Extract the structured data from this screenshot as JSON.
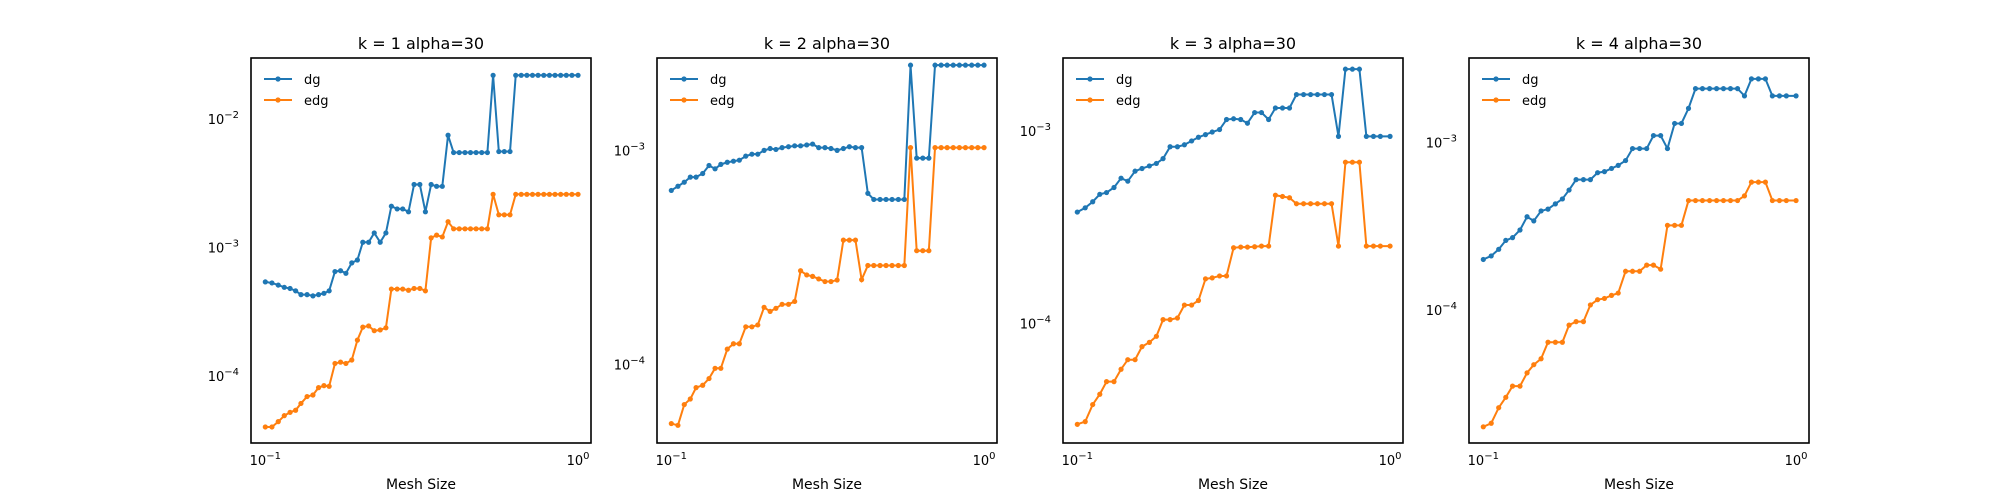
{
  "colors": {
    "dg": "#1f77b4",
    "edg": "#ff7f0e"
  },
  "chart_data": [
    {
      "type": "line",
      "title": "k = 1 alpha=30",
      "xlabel": "Mesh Size",
      "ylabel": "",
      "xscale": "log",
      "yscale": "log",
      "xlim": [
        0.09,
        1.1
      ],
      "ylim": [
        3e-05,
        0.03
      ],
      "xticks": [
        {
          "value": 0.1,
          "base": "10",
          "exp": "−1"
        },
        {
          "value": 1,
          "base": "10",
          "exp": "0"
        }
      ],
      "yticks": [
        {
          "value": 0.0001,
          "base": "10",
          "exp": "−4"
        },
        {
          "value": 0.001,
          "base": "10",
          "exp": "−3"
        },
        {
          "value": 0.01,
          "base": "10",
          "exp": "−2"
        }
      ],
      "legend": "top-left",
      "grid": false,
      "x": [
        0.1,
        0.105,
        0.11,
        0.115,
        0.12,
        0.125,
        0.13,
        0.136,
        0.142,
        0.148,
        0.154,
        0.16,
        0.167,
        0.174,
        0.181,
        0.189,
        0.197,
        0.205,
        0.214,
        0.223,
        0.233,
        0.243,
        0.253,
        0.264,
        0.275,
        0.287,
        0.299,
        0.312,
        0.325,
        0.339,
        0.353,
        0.368,
        0.384,
        0.4,
        0.417,
        0.435,
        0.453,
        0.472,
        0.492,
        0.513,
        0.535,
        0.558,
        0.581,
        0.606,
        0.632,
        0.658,
        0.686,
        0.715,
        0.745,
        0.777,
        0.81,
        0.844,
        0.88,
        0.917,
        0.956,
        1.0
      ],
      "series": [
        {
          "name": "dg",
          "values": [
            0.00054,
            0.00053,
            0.00051,
            0.00049,
            0.00048,
            0.00046,
            0.00043,
            0.00043,
            0.00042,
            0.00043,
            0.00044,
            0.00046,
            0.00065,
            0.00066,
            0.00063,
            0.00076,
            0.0008,
            0.0011,
            0.0011,
            0.0013,
            0.0011,
            0.0013,
            0.0021,
            0.002,
            0.002,
            0.0019,
            0.0031,
            0.0031,
            0.0019,
            0.0031,
            0.003,
            0.003,
            0.0075,
            0.0055,
            0.0055,
            0.0055,
            0.0055,
            0.0055,
            0.0055,
            0.0055,
            0.022,
            0.0056,
            0.0056,
            0.0056,
            0.022,
            0.022,
            0.022,
            0.022,
            0.022,
            0.022,
            0.022,
            0.022,
            0.022,
            0.022,
            0.022,
            0.022
          ]
        },
        {
          "name": "edg",
          "values": [
            4e-05,
            4e-05,
            4.4e-05,
            4.9e-05,
            5.2e-05,
            5.4e-05,
            6.1e-05,
            6.9e-05,
            7.1e-05,
            8.1e-05,
            8.4e-05,
            8.3e-05,
            0.000125,
            0.000128,
            0.000125,
            0.000133,
            0.00019,
            0.00024,
            0.000245,
            0.000225,
            0.000228,
            0.000237,
            0.000475,
            0.000475,
            0.000475,
            0.000465,
            0.00048,
            0.00048,
            0.00046,
            0.00119,
            0.00125,
            0.00121,
            0.00159,
            0.0014,
            0.0014,
            0.0014,
            0.0014,
            0.0014,
            0.0014,
            0.0014,
            0.0026,
            0.0018,
            0.0018,
            0.0018,
            0.0026,
            0.0026,
            0.0026,
            0.0026,
            0.0026,
            0.0026,
            0.0026,
            0.0026,
            0.0026,
            0.0026,
            0.0026,
            0.0026
          ]
        }
      ]
    },
    {
      "type": "line",
      "title": "k = 2 alpha=30",
      "xlabel": "Mesh Size",
      "ylabel": "",
      "xscale": "log",
      "yscale": "log",
      "xlim": [
        0.09,
        1.1
      ],
      "ylim": [
        4.3e-05,
        0.0027
      ],
      "xticks": [
        {
          "value": 0.1,
          "base": "10",
          "exp": "−1"
        },
        {
          "value": 1,
          "base": "10",
          "exp": "0"
        }
      ],
      "yticks": [
        {
          "value": 0.0001,
          "base": "10",
          "exp": "−4"
        },
        {
          "value": 0.001,
          "base": "10",
          "exp": "−3"
        }
      ],
      "legend": "top-left",
      "grid": false,
      "x": [
        0.1,
        0.105,
        0.11,
        0.115,
        0.12,
        0.126,
        0.132,
        0.138,
        0.144,
        0.151,
        0.158,
        0.165,
        0.173,
        0.181,
        0.189,
        0.198,
        0.207,
        0.216,
        0.226,
        0.237,
        0.248,
        0.259,
        0.271,
        0.283,
        0.296,
        0.31,
        0.324,
        0.339,
        0.355,
        0.371,
        0.388,
        0.406,
        0.425,
        0.444,
        0.465,
        0.486,
        0.508,
        0.532,
        0.556,
        0.582,
        0.609,
        0.637,
        0.666,
        0.697,
        0.729,
        0.762,
        0.797,
        0.834,
        0.872,
        0.913,
        0.955,
        1.0
      ],
      "series": [
        {
          "name": "dg",
          "values": [
            0.00065,
            0.00068,
            0.00071,
            0.00075,
            0.00075,
            0.00078,
            0.00085,
            0.00082,
            0.00086,
            0.00088,
            0.00089,
            0.0009,
            0.00094,
            0.00096,
            0.00096,
            0.001,
            0.00102,
            0.00101,
            0.00103,
            0.00104,
            0.00105,
            0.00105,
            0.00106,
            0.00107,
            0.00103,
            0.00103,
            0.00102,
            0.001,
            0.00102,
            0.00104,
            0.00103,
            0.00103,
            0.00063,
            0.00059,
            0.00059,
            0.00059,
            0.00059,
            0.00059,
            0.00059,
            0.0025,
            0.00092,
            0.00092,
            0.00092,
            0.0025,
            0.0025,
            0.0025,
            0.0025,
            0.0025,
            0.0025,
            0.0025,
            0.0025,
            0.0025
          ]
        },
        {
          "name": "edg",
          "values": [
            5.3e-05,
            5.2e-05,
            6.5e-05,
            6.9e-05,
            7.8e-05,
            8e-05,
            8.6e-05,
            9.6e-05,
            9.6e-05,
            0.000118,
            0.000125,
            0.000125,
            0.00015,
            0.00015,
            0.000153,
            0.000185,
            0.000177,
            0.000183,
            0.000191,
            0.000191,
            0.000197,
            0.000274,
            0.000262,
            0.000258,
            0.000251,
            0.000244,
            0.000244,
            0.000248,
            0.000381,
            0.000381,
            0.000381,
            0.000249,
            0.00029,
            0.00029,
            0.00029,
            0.00029,
            0.00029,
            0.00029,
            0.00029,
            0.00103,
            0.00034,
            0.00034,
            0.00034,
            0.00103,
            0.00103,
            0.00103,
            0.00103,
            0.00103,
            0.00103,
            0.00103,
            0.00103,
            0.00103
          ]
        }
      ]
    },
    {
      "type": "line",
      "title": "k = 3 alpha=30",
      "xlabel": "Mesh Size",
      "ylabel": "",
      "xscale": "log",
      "yscale": "log",
      "xlim": [
        0.09,
        1.1
      ],
      "ylim": [
        2.4e-05,
        0.0024
      ],
      "xticks": [
        {
          "value": 0.1,
          "base": "10",
          "exp": "−1"
        },
        {
          "value": 1,
          "base": "10",
          "exp": "0"
        }
      ],
      "yticks": [
        {
          "value": 0.0001,
          "base": "10",
          "exp": "−4"
        },
        {
          "value": 0.001,
          "base": "10",
          "exp": "−3"
        }
      ],
      "legend": "top-left",
      "grid": false,
      "x": [
        0.1,
        0.106,
        0.112,
        0.118,
        0.124,
        0.131,
        0.138,
        0.145,
        0.153,
        0.161,
        0.17,
        0.179,
        0.188,
        0.198,
        0.209,
        0.22,
        0.232,
        0.244,
        0.257,
        0.27,
        0.285,
        0.3,
        0.316,
        0.333,
        0.35,
        0.369,
        0.388,
        0.409,
        0.43,
        0.453,
        0.477,
        0.502,
        0.529,
        0.557,
        0.586,
        0.617,
        0.65,
        0.684,
        0.72,
        0.758,
        0.798,
        0.84,
        0.885,
        0.931,
        1.0
      ],
      "series": [
        {
          "name": "dg",
          "values": [
            0.00038,
            0.0004,
            0.00043,
            0.00047,
            0.00048,
            0.00051,
            0.00057,
            0.00055,
            0.00062,
            0.00064,
            0.00066,
            0.00068,
            0.00072,
            0.00083,
            0.00083,
            0.00085,
            0.00089,
            0.00093,
            0.00096,
            0.00099,
            0.00102,
            0.00115,
            0.00116,
            0.00115,
            0.0011,
            0.00125,
            0.00125,
            0.00115,
            0.00132,
            0.00132,
            0.00132,
            0.00155,
            0.00155,
            0.00155,
            0.00155,
            0.00155,
            0.00155,
            0.00094,
            0.0021,
            0.0021,
            0.0021,
            0.00094,
            0.00094,
            0.00094,
            0.00094
          ]
        },
        {
          "name": "edg",
          "values": [
            3e-05,
            3.1e-05,
            3.8e-05,
            4.3e-05,
            5e-05,
            5e-05,
            5.8e-05,
            6.5e-05,
            6.5e-05,
            7.6e-05,
            8e-05,
            8.6e-05,
            0.000105,
            0.000105,
            0.000107,
            0.000125,
            0.000125,
            0.000132,
            0.000171,
            0.000173,
            0.000177,
            0.000177,
            0.000248,
            0.00025,
            0.00025,
            0.000251,
            0.000253,
            0.000253,
            0.000465,
            0.000458,
            0.000451,
            0.00042,
            0.00042,
            0.00042,
            0.00042,
            0.00042,
            0.00042,
            0.000253,
            0.00069,
            0.00069,
            0.00069,
            0.000253,
            0.000253,
            0.000253,
            0.000253
          ]
        }
      ]
    },
    {
      "type": "line",
      "title": "k = 4 alpha=30",
      "xlabel": "Mesh Size",
      "ylabel": "",
      "xscale": "log",
      "yscale": "log",
      "xlim": [
        0.09,
        1.1
      ],
      "ylim": [
        1.6e-05,
        0.0032
      ],
      "xticks": [
        {
          "value": 0.1,
          "base": "10",
          "exp": "−1"
        },
        {
          "value": 1,
          "base": "10",
          "exp": "0"
        }
      ],
      "yticks": [
        {
          "value": 0.0001,
          "base": "10",
          "exp": "−4"
        },
        {
          "value": 0.001,
          "base": "10",
          "exp": "−3"
        }
      ],
      "legend": "top-left",
      "grid": false,
      "x": [
        0.1,
        0.106,
        0.112,
        0.118,
        0.124,
        0.131,
        0.138,
        0.145,
        0.153,
        0.161,
        0.17,
        0.179,
        0.188,
        0.198,
        0.209,
        0.22,
        0.232,
        0.244,
        0.257,
        0.27,
        0.285,
        0.3,
        0.316,
        0.333,
        0.35,
        0.369,
        0.388,
        0.409,
        0.43,
        0.453,
        0.477,
        0.502,
        0.529,
        0.557,
        0.586,
        0.617,
        0.65,
        0.684,
        0.72,
        0.758,
        0.798,
        0.84,
        0.885,
        0.931,
        1.0
      ],
      "series": [
        {
          "name": "dg",
          "values": [
            0.0002,
            0.00021,
            0.00023,
            0.00026,
            0.00027,
            0.0003,
            0.00036,
            0.00034,
            0.00039,
            0.0004,
            0.00043,
            0.00046,
            0.00052,
            0.0006,
            0.0006,
            0.0006,
            0.00066,
            0.00067,
            0.0007,
            0.00073,
            0.00078,
            0.00092,
            0.00092,
            0.00092,
            0.0011,
            0.0011,
            0.00092,
            0.0013,
            0.0013,
            0.0016,
            0.0021,
            0.0021,
            0.0021,
            0.0021,
            0.0021,
            0.0021,
            0.0021,
            0.0019,
            0.0024,
            0.0024,
            0.0024,
            0.0019,
            0.0019,
            0.0019,
            0.0019
          ]
        },
        {
          "name": "edg",
          "values": [
            2e-05,
            2.1e-05,
            2.6e-05,
            3e-05,
            3.5e-05,
            3.5e-05,
            4.2e-05,
            4.7e-05,
            5.1e-05,
            6.4e-05,
            6.4e-05,
            6.4e-05,
            8.1e-05,
            8.5e-05,
            8.5e-05,
            0.000107,
            0.000115,
            0.000117,
            0.000122,
            0.000126,
            0.00017,
            0.00017,
            0.00017,
            0.000185,
            0.000185,
            0.000175,
            0.00032,
            0.00032,
            0.00032,
            0.00045,
            0.00045,
            0.00045,
            0.00045,
            0.00045,
            0.00045,
            0.00045,
            0.00045,
            0.00048,
            0.00058,
            0.00058,
            0.00058,
            0.00045,
            0.00045,
            0.00045,
            0.00045
          ]
        }
      ]
    }
  ]
}
